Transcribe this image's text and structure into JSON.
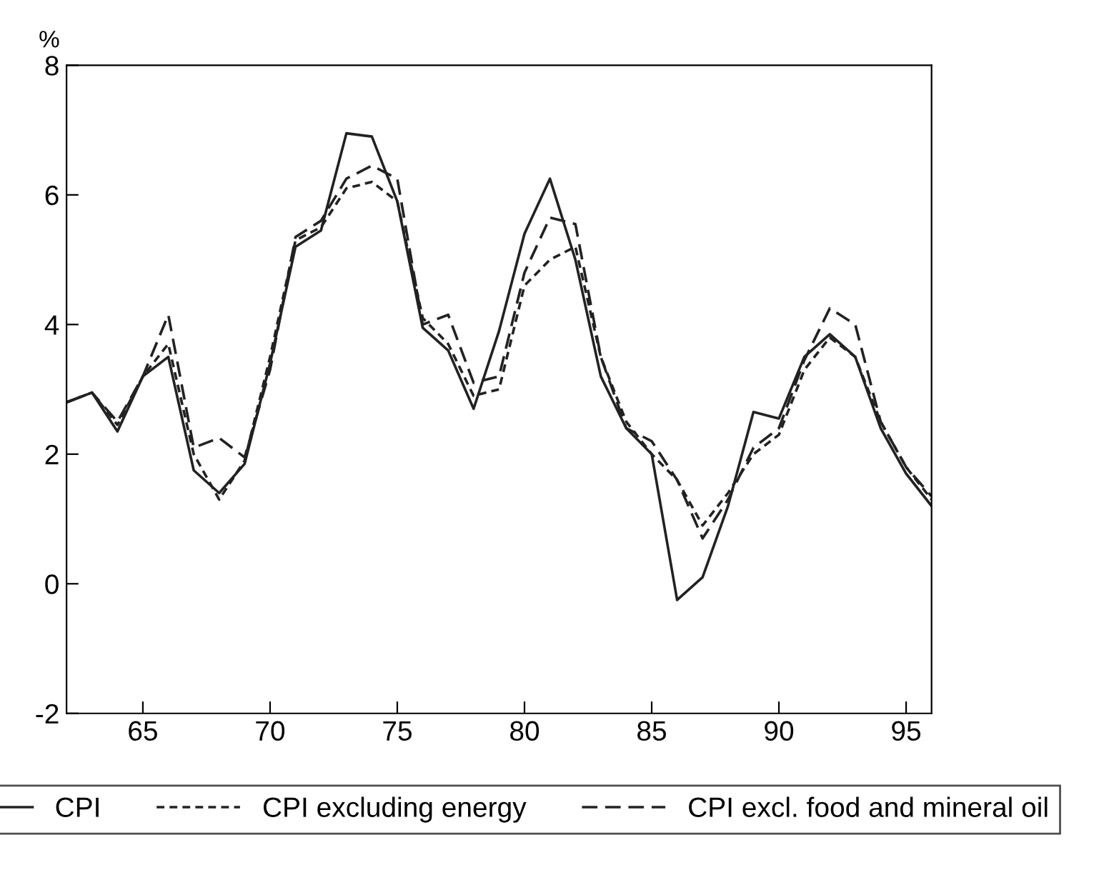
{
  "chart_data": {
    "type": "line",
    "ylabel": "%",
    "x": [
      62,
      63,
      64,
      65,
      66,
      67,
      68,
      69,
      70,
      71,
      72,
      73,
      74,
      75,
      76,
      77,
      78,
      79,
      80,
      81,
      82,
      83,
      84,
      85,
      86,
      87,
      88,
      89,
      90,
      91,
      92,
      93,
      94,
      95,
      96
    ],
    "series": [
      {
        "name": "CPI",
        "color": "#222222",
        "line_style": "solid",
        "values": [
          2.8,
          2.95,
          2.35,
          3.2,
          3.5,
          1.75,
          1.4,
          1.85,
          3.4,
          5.2,
          5.45,
          6.95,
          6.9,
          5.9,
          3.95,
          3.6,
          2.7,
          3.9,
          5.4,
          6.25,
          5.0,
          3.2,
          2.4,
          2.0,
          -0.25,
          0.1,
          1.2,
          2.65,
          2.55,
          3.5,
          3.85,
          3.5,
          2.4,
          1.7,
          1.2
        ]
      },
      {
        "name": "CPI excluding energy",
        "color": "#222222",
        "line_style": "dotted",
        "values": [
          2.8,
          2.95,
          2.45,
          3.2,
          3.7,
          2.0,
          1.3,
          1.9,
          3.5,
          5.3,
          5.5,
          6.1,
          6.2,
          5.9,
          4.1,
          3.7,
          2.9,
          3.0,
          4.6,
          5.0,
          5.2,
          3.5,
          2.5,
          2.0,
          1.6,
          0.9,
          1.4,
          2.0,
          2.3,
          3.3,
          3.8,
          3.5,
          2.5,
          1.8,
          1.3
        ]
      },
      {
        "name": "CPI excl. food and mineral oil",
        "color": "#222222",
        "line_style": "dashed",
        "values": [
          2.8,
          2.95,
          2.5,
          3.2,
          4.15,
          2.1,
          2.25,
          1.95,
          3.3,
          5.35,
          5.6,
          6.25,
          6.45,
          6.25,
          4.0,
          4.15,
          3.1,
          3.2,
          4.8,
          5.65,
          5.55,
          3.5,
          2.4,
          2.2,
          1.6,
          0.7,
          1.3,
          2.1,
          2.4,
          3.45,
          4.25,
          4.0,
          2.5,
          1.8,
          1.35
        ]
      }
    ],
    "xlim": [
      62,
      96
    ],
    "xticks": [
      65,
      70,
      75,
      80,
      85,
      90,
      95
    ],
    "ylim": [
      -2,
      8
    ],
    "yticks": [
      -2,
      0,
      2,
      4,
      6,
      8
    ],
    "grid": false,
    "legend": "bottom"
  }
}
